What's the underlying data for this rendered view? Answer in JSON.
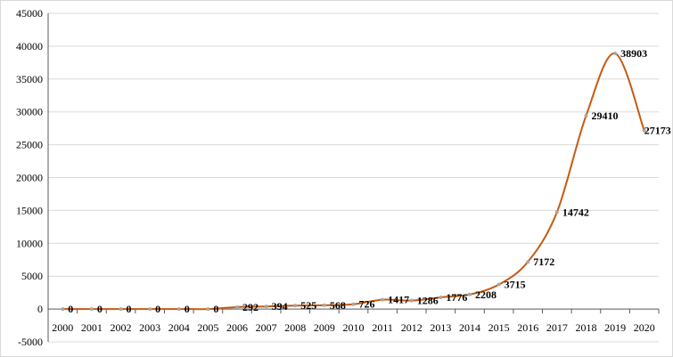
{
  "chart_data": {
    "type": "line",
    "title": "",
    "xlabel": "",
    "ylabel": "",
    "categories": [
      "2000",
      "2001",
      "2002",
      "2003",
      "2004",
      "2005",
      "2006",
      "2007",
      "2008",
      "2009",
      "2010",
      "2011",
      "2012",
      "2013",
      "2014",
      "2015",
      "2016",
      "2017",
      "2018",
      "2019",
      "2020"
    ],
    "series": [
      {
        "values": [
          0,
          0,
          0,
          0,
          0,
          0,
          292,
          394,
          525,
          568,
          726,
          1417,
          1286,
          1776,
          2208,
          3715,
          7172,
          14742,
          29410,
          38903,
          27173
        ]
      }
    ],
    "ylim": [
      -5000,
      45000
    ],
    "yticks": [
      -5000,
      0,
      5000,
      10000,
      15000,
      20000,
      25000,
      30000,
      35000,
      40000,
      45000
    ],
    "grid": true,
    "legend": "none",
    "colors": {
      "line": "#c55a11",
      "marker": "#a6a6a6"
    }
  }
}
